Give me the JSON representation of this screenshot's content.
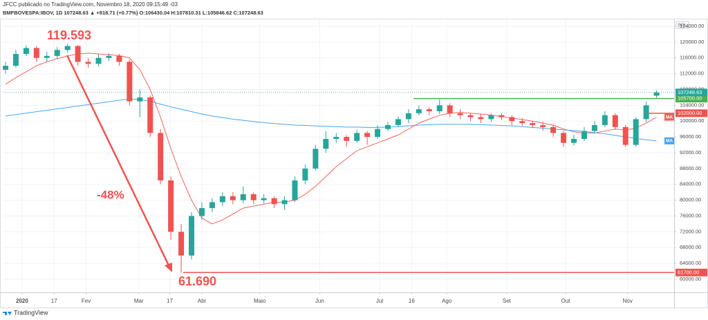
{
  "header": {
    "publisher": "JFCC publicado no TradingView.com, Novembro 18, 2020 09:15:49 -03",
    "info": "BMFBOVESPA:IBOV, 1D  107248.63  ▲ +818.71 (+0.77%)  O:106430.04  H:107810.31  L:105846.62  C:107248.63"
  },
  "footer": "TradingView",
  "chart_data": {
    "type": "candlestick",
    "currency": "BRL",
    "up_color": "#26a69a",
    "down_color": "#ef5350",
    "open": [
      113000,
      114000,
      117000,
      118500,
      116000,
      116500,
      118000,
      119000,
      115000,
      114500,
      116000,
      116500,
      115000,
      105000,
      106000,
      97000,
      85000,
      72000,
      66000,
      76000,
      78000,
      79500,
      81000,
      80000,
      81500,
      80000,
      80500,
      79000,
      80000,
      85000,
      88000,
      93000,
      95500,
      96000,
      95000,
      97000,
      96000,
      98000,
      99000,
      100500,
      102000,
      103000,
      102500,
      104000,
      102000,
      101500,
      101000,
      100500,
      101500,
      101000,
      100000,
      99500,
      99000,
      98500,
      97000,
      94500,
      95500,
      97500,
      99000,
      101500,
      98500,
      94000,
      100500,
      106430.04
    ],
    "high": [
      115000,
      118000,
      119200,
      119000,
      117500,
      118800,
      119593,
      119300,
      116000,
      117000,
      117200,
      117000,
      115500,
      108000,
      106500,
      98000,
      86000,
      74000,
      77000,
      79500,
      80500,
      82000,
      82000,
      83500,
      82000,
      81500,
      81000,
      81000,
      86000,
      89000,
      94000,
      97500,
      97000,
      96500,
      97800,
      97500,
      99000,
      99800,
      101200,
      103000,
      104000,
      103500,
      105500,
      104500,
      103000,
      102000,
      101800,
      102000,
      102000,
      101500,
      100800,
      100000,
      99800,
      99000,
      97500,
      96500,
      98500,
      100000,
      102500,
      102000,
      99000,
      101000,
      105000,
      107810.31
    ],
    "low": [
      112000,
      113500,
      116500,
      115000,
      115000,
      115800,
      117300,
      114000,
      113500,
      113800,
      115200,
      114000,
      104000,
      101000,
      96000,
      84000,
      70000,
      61690,
      65000,
      75000,
      77000,
      78500,
      79000,
      79200,
      79000,
      79200,
      78000,
      77500,
      79500,
      84000,
      87500,
      92000,
      94500,
      93500,
      94500,
      94000,
      95500,
      97500,
      98500,
      99500,
      101500,
      101500,
      101800,
      101000,
      100500,
      100000,
      99500,
      99800,
      100200,
      99000,
      98800,
      98200,
      97500,
      96000,
      93500,
      93800,
      95000,
      96800,
      98500,
      97800,
      93500,
      93500,
      99800,
      105846.62
    ],
    "close": [
      114000,
      117000,
      118500,
      116000,
      116500,
      118000,
      119000,
      115000,
      114500,
      116000,
      116500,
      115000,
      105000,
      106000,
      97000,
      85000,
      72000,
      66000,
      76000,
      78000,
      79500,
      81000,
      80000,
      81500,
      80000,
      80500,
      79000,
      80000,
      85000,
      88000,
      93000,
      95500,
      96000,
      95000,
      97000,
      96000,
      98000,
      99000,
      100500,
      102000,
      103000,
      102500,
      104000,
      102000,
      101500,
      101000,
      100500,
      101500,
      101000,
      100000,
      99500,
      99000,
      98500,
      97000,
      94500,
      95500,
      97500,
      99000,
      101500,
      98500,
      94000,
      100500,
      104000,
      107248.63
    ],
    "series": [
      {
        "name": "MA",
        "color": "#f0625a",
        "values": [
          109300,
          111000,
          112500,
          114000,
          115000,
          115800,
          116500,
          117000,
          117200,
          117000,
          116800,
          116600,
          116000,
          113000,
          108000,
          101000,
          93000,
          86000,
          80000,
          75500,
          74000,
          75000,
          76500,
          78000,
          78500,
          79000,
          79500,
          79500,
          80000,
          81500,
          83500,
          86000,
          88500,
          90500,
          92500,
          93500,
          94500,
          95500,
          96500,
          98000,
          99500,
          100500,
          101500,
          102000,
          102200,
          102000,
          101800,
          101500,
          101200,
          100800,
          100400,
          100000,
          99500,
          99000,
          98000,
          97300,
          97000,
          97000,
          97500,
          98000,
          97800,
          98200,
          99500,
          101000
        ]
      },
      {
        "name": "MA",
        "color": "#42a5f5",
        "values": [
          101300,
          101660,
          102020,
          102380,
          102740,
          103100,
          103460,
          103820,
          104180,
          104540,
          104900,
          105260,
          105600,
          105500,
          105000,
          104300,
          103600,
          103000,
          102400,
          101800,
          101300,
          100900,
          100500,
          100200,
          99900,
          99600,
          99400,
          99200,
          99000,
          98900,
          98800,
          98700,
          98600,
          98500,
          98500,
          98400,
          98400,
          98500,
          98600,
          98800,
          99000,
          99100,
          99200,
          99200,
          99200,
          99200,
          99100,
          99000,
          98900,
          98800,
          98600,
          98400,
          98200,
          98000,
          97800,
          97600,
          97400,
          97100,
          96800,
          96400,
          96000,
          95600,
          95300,
          95000
        ]
      }
    ],
    "levels": [
      {
        "value": 105700,
        "label": "105700.00",
        "color": "#4caf50"
      },
      {
        "value": 102000,
        "label": "102000.00",
        "color": "#ef5350"
      },
      {
        "value": 61700,
        "label": "61700.00",
        "color": "#ef5350"
      }
    ],
    "ylim": [
      56680,
      125750
    ],
    "yticks": [
      {
        "value": 60000,
        "label": "60000.00"
      },
      {
        "value": 64000,
        "label": "64000.00"
      },
      {
        "value": 68000,
        "label": "68000.00"
      },
      {
        "value": 72000,
        "label": "72000.00"
      },
      {
        "value": 76000,
        "label": "76000.00"
      },
      {
        "value": 80000,
        "label": "80000.00"
      },
      {
        "value": 84000,
        "label": "84000.00"
      },
      {
        "value": 88000,
        "label": "88000.00"
      },
      {
        "value": 92000,
        "label": "92000.00"
      },
      {
        "value": 96000,
        "label": "96000.00"
      },
      {
        "value": 100000,
        "label": "100000.00"
      },
      {
        "value": 104000,
        "label": "104000.00"
      },
      {
        "value": 108000,
        "label": "108000.00"
      },
      {
        "value": 112000,
        "label": "112000.00"
      },
      {
        "value": 116000,
        "label": "116000.00"
      },
      {
        "value": 120000,
        "label": "120000.00"
      },
      {
        "value": 124000,
        "label": "124000.00"
      }
    ],
    "xlim": [
      -0.2,
      64.7
    ],
    "xticks": [
      {
        "value": 1.6,
        "label": "2020"
      },
      {
        "value": 4.7,
        "label": "17"
      },
      {
        "value": 7.8,
        "label": "Fev"
      },
      {
        "value": 12.9,
        "label": "Mar"
      },
      {
        "value": 15.9,
        "label": "17"
      },
      {
        "value": 19,
        "label": "Abr"
      },
      {
        "value": 24.6,
        "label": "Maio"
      },
      {
        "value": 30.4,
        "label": "Jun"
      },
      {
        "value": 36.2,
        "label": "Jul"
      },
      {
        "value": 39.3,
        "label": "16"
      },
      {
        "value": 42.7,
        "label": "Ago"
      },
      {
        "value": 48.5,
        "label": "Set"
      },
      {
        "value": 54.2,
        "label": "Out"
      },
      {
        "value": 60.2,
        "label": "Nov"
      }
    ],
    "grid": true,
    "annotations": [
      "119.593",
      "-48%",
      "61.690"
    ]
  }
}
